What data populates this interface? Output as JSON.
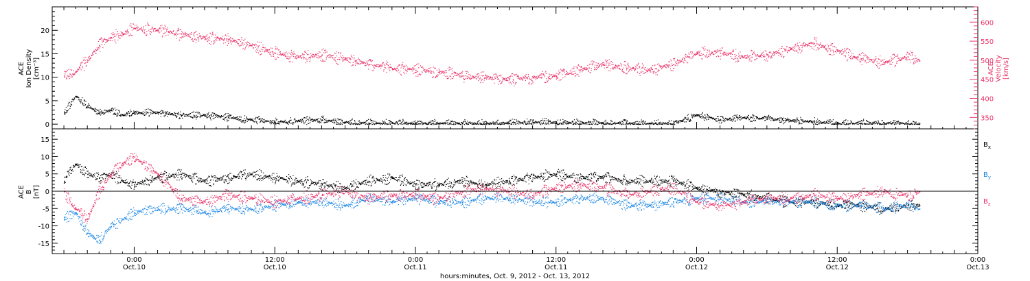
{
  "chart_data": [
    {
      "type": "scatter",
      "panel": "top",
      "title": "",
      "ylabel_left": [
        "ACE",
        "Ion Density",
        "[cm⁻³]"
      ],
      "ylabel_right": [
        "ACE",
        "Velocity",
        "[km/s]"
      ],
      "ylim_left": [
        -1,
        25
      ],
      "ylim_right": [
        320,
        640
      ],
      "yticks_left": [
        0,
        5,
        10,
        15,
        20
      ],
      "yticks_right": [
        350,
        400,
        450,
        500,
        550,
        600
      ],
      "colors": {
        "density": "#000000",
        "velocity": "#e8336a"
      },
      "series": [
        {
          "name": "Ion Density",
          "axis": "left",
          "x": [
            -6,
            -5,
            -4,
            -3,
            -2,
            -1,
            0,
            2,
            4,
            6,
            8,
            10,
            12,
            14,
            16,
            18,
            20,
            22,
            24,
            26,
            28,
            30,
            32,
            34,
            36,
            38,
            40,
            42,
            44,
            46,
            48,
            50,
            52,
            54,
            56,
            58,
            60,
            62,
            64,
            66,
            67
          ],
          "y": [
            2.5,
            6,
            4,
            2.5,
            3,
            2,
            2.5,
            2.5,
            2,
            2,
            1.5,
            1,
            0.5,
            0.8,
            1,
            0.5,
            0.3,
            0.3,
            0.2,
            0.2,
            0.2,
            0.2,
            0.3,
            0.5,
            0.4,
            0.3,
            0.3,
            0.2,
            0.2,
            0.2,
            2,
            1,
            1.5,
            1.2,
            0.8,
            0.6,
            0.2,
            0.3,
            0.2,
            0.2,
            0.2
          ]
        },
        {
          "name": "Velocity",
          "axis": "right",
          "x": [
            -6,
            -5,
            -4,
            -3,
            -2,
            -1,
            0,
            2,
            4,
            6,
            8,
            10,
            12,
            14,
            16,
            18,
            20,
            22,
            24,
            26,
            28,
            30,
            32,
            34,
            36,
            38,
            40,
            42,
            44,
            46,
            48,
            50,
            52,
            54,
            56,
            58,
            60,
            62,
            64,
            66,
            67
          ],
          "y": [
            460,
            470,
            500,
            540,
            560,
            570,
            585,
            580,
            570,
            560,
            555,
            540,
            520,
            510,
            515,
            505,
            490,
            480,
            475,
            470,
            460,
            455,
            450,
            455,
            460,
            475,
            490,
            480,
            475,
            490,
            520,
            520,
            510,
            515,
            530,
            545,
            525,
            505,
            495,
            510,
            500
          ]
        }
      ]
    },
    {
      "type": "scatter",
      "panel": "bottom",
      "title": "",
      "xlabel": "hours:minutes, Oct.  9, 2012 - Oct. 13, 2012",
      "ylabel": [
        "ACE",
        "B",
        "[nT]"
      ],
      "ylim": [
        -18,
        18
      ],
      "yticks": [
        -15,
        -10,
        -5,
        0,
        5,
        10,
        15
      ],
      "xlim": [
        -7,
        72
      ],
      "xticks": [
        {
          "hour": 0,
          "time": "0:00",
          "date": "Oct.10"
        },
        {
          "hour": 12,
          "time": "12:00",
          "date": "Oct.10"
        },
        {
          "hour": 24,
          "time": "0:00",
          "date": "Oct.11"
        },
        {
          "hour": 36,
          "time": "12:00",
          "date": "Oct.11"
        },
        {
          "hour": 48,
          "time": "0:00",
          "date": "Oct.12"
        },
        {
          "hour": 60,
          "time": "12:00",
          "date": "Oct.12"
        },
        {
          "hour": 72,
          "time": "0:00",
          "date": "Oct.13"
        }
      ],
      "legend": [
        "Bx",
        "By",
        "Bz"
      ],
      "colors": {
        "Bx": "#000000",
        "By": "#1e88e5",
        "Bz": "#e8336a"
      },
      "series": [
        {
          "name": "Bx",
          "x": [
            -6,
            -5,
            -4,
            -3,
            -2,
            -1,
            0,
            2,
            4,
            6,
            8,
            10,
            12,
            14,
            16,
            18,
            20,
            22,
            24,
            26,
            28,
            30,
            32,
            34,
            36,
            38,
            40,
            42,
            44,
            46,
            48,
            50,
            52,
            54,
            56,
            58,
            60,
            62,
            64,
            66,
            67
          ],
          "y": [
            3,
            8,
            5,
            4,
            5,
            3,
            2,
            4,
            5,
            3,
            4,
            5,
            4,
            3,
            2,
            1,
            3,
            4,
            2,
            2,
            3,
            2,
            3,
            4,
            5,
            4,
            4,
            3,
            3,
            3,
            1,
            0,
            -1,
            -2,
            -3,
            -3,
            -4,
            -4,
            -5,
            -4,
            -4
          ]
        },
        {
          "name": "By",
          "x": [
            -6,
            -5,
            -4,
            -3,
            -2,
            -1,
            0,
            2,
            4,
            6,
            8,
            10,
            12,
            14,
            16,
            18,
            20,
            22,
            24,
            26,
            28,
            30,
            32,
            34,
            36,
            38,
            40,
            42,
            44,
            46,
            48,
            50,
            52,
            54,
            56,
            58,
            60,
            62,
            64,
            66,
            67
          ],
          "y": [
            -8,
            -6,
            -12,
            -14,
            -10,
            -8,
            -6,
            -5,
            -5,
            -6,
            -5,
            -5,
            -4,
            -3,
            -3,
            -4,
            -2,
            -3,
            -2,
            -3,
            -3,
            -2,
            -2,
            -3,
            -3,
            -2,
            -2,
            -4,
            -4,
            -3,
            -2,
            -2,
            -3,
            -3,
            -3,
            -3,
            -4,
            -4,
            -5,
            -4,
            -5
          ]
        },
        {
          "name": "Bz",
          "x": [
            -6,
            -5,
            -4,
            -3,
            -2,
            -1,
            0,
            2,
            4,
            6,
            8,
            10,
            12,
            14,
            16,
            18,
            20,
            22,
            24,
            26,
            28,
            30,
            32,
            34,
            36,
            38,
            40,
            42,
            44,
            46,
            48,
            50,
            52,
            54,
            56,
            58,
            60,
            62,
            64,
            66,
            67
          ],
          "y": [
            0,
            -5,
            -8,
            0,
            5,
            8,
            10,
            5,
            -2,
            -3,
            -1,
            -2,
            -3,
            -2,
            -1,
            0,
            -2,
            -1,
            -1,
            -2,
            0,
            1,
            0,
            -1,
            1,
            2,
            1,
            -1,
            0,
            1,
            -3,
            -4,
            -3,
            -2,
            -2,
            -1,
            -2,
            -1,
            0,
            -1,
            0
          ]
        }
      ]
    }
  ]
}
